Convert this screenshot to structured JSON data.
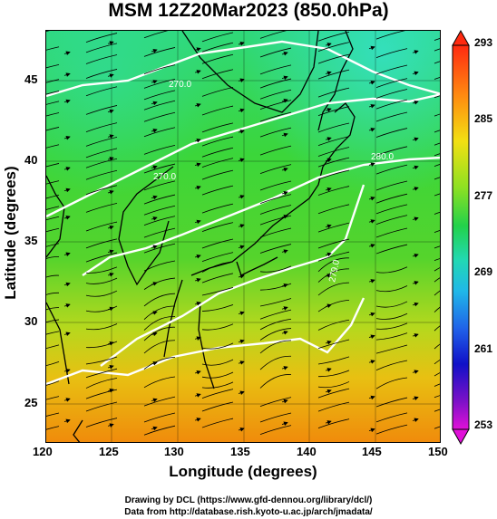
{
  "map": {
    "title": "MSM 12Z20Mar2023 (850.0hPa)",
    "x_axis_label": "Longitude (degrees)",
    "y_axis_label": "Latitude  (degrees)",
    "lon_range": [
      120,
      150
    ],
    "lat_range": [
      22.5,
      48
    ],
    "x_ticks": [
      "120",
      "125",
      "130",
      "135",
      "140",
      "145",
      "150"
    ],
    "y_ticks": [
      "25",
      "30",
      "35",
      "40",
      "45"
    ],
    "contour_labels": [
      "270.0",
      "270.0",
      "280.0",
      "279.0"
    ],
    "colorbar": {
      "ticks": [
        "293",
        "285",
        "277",
        "269",
        "261",
        "253"
      ],
      "min": 253,
      "max": 293
    },
    "credit_line1": "Drawing by DCL (https://www.gfd-dennou.org/library/dcl/)",
    "credit_line2": "Data from http://database.rish.kyoto-u.ac.jp/arch/jmadata/"
  }
}
